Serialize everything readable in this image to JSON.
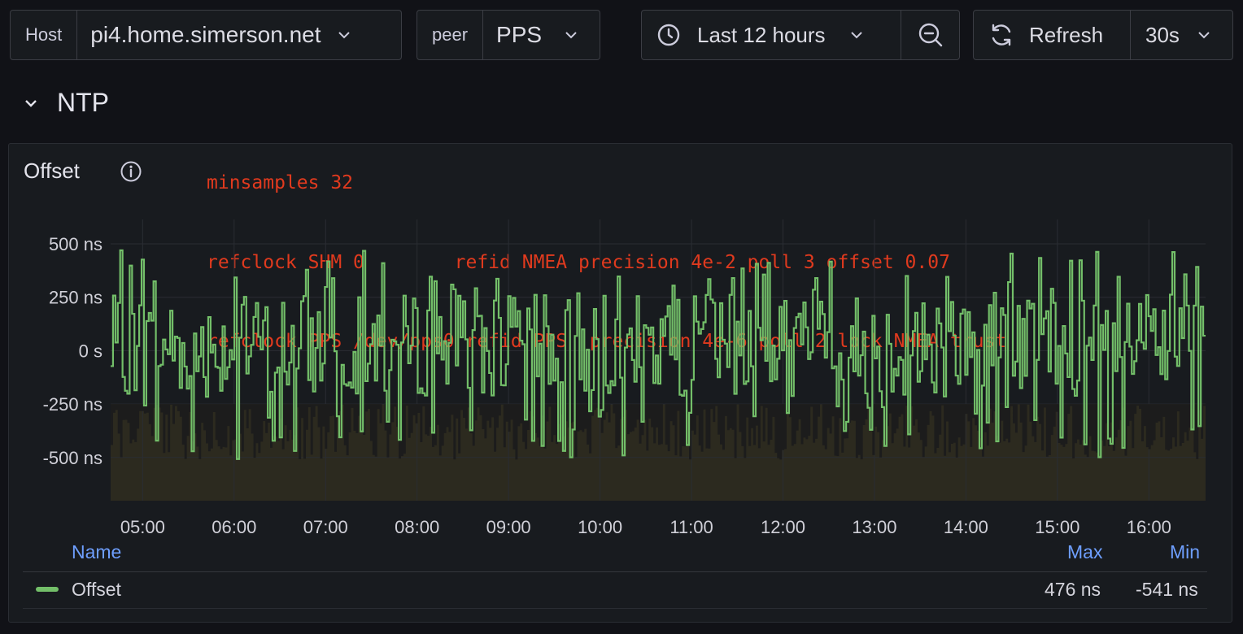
{
  "toolbar": {
    "host": {
      "label": "Host",
      "value": "pi4.home.simerson.net"
    },
    "peer": {
      "label": "peer",
      "value": "PPS"
    },
    "time_range": "Last 12 hours",
    "refresh_label": "Refresh",
    "refresh_interval": "30s"
  },
  "row": {
    "title": "NTP"
  },
  "panel": {
    "title": "Offset",
    "annotation_lines": [
      "minsamples 32",
      "refclock SHM 0        refid NMEA precision 4e-2 poll 3 offset 0.07",
      "refclock PPS /dev/pps0 refid PPS  precision 4e-6 poll 2 lock NMEA trust"
    ],
    "legend": {
      "headers": {
        "name": "Name",
        "max": "Max",
        "min": "Min"
      },
      "rows": [
        {
          "name": "Offset",
          "max": "476 ns",
          "min": "-541 ns",
          "color": "#73bf69"
        }
      ]
    }
  },
  "chart_data": {
    "type": "bar",
    "title": "Offset",
    "y_ticks": [
      "500 ns",
      "250 ns",
      "0 s",
      "-250 ns",
      "-500 ns"
    ],
    "y_tick_values": [
      500,
      250,
      0,
      -250,
      -500
    ],
    "ylim": [
      -700,
      600
    ],
    "x_ticks": [
      "05:00",
      "06:00",
      "07:00",
      "08:00",
      "09:00",
      "10:00",
      "11:00",
      "12:00",
      "13:00",
      "14:00",
      "15:00",
      "16:00"
    ],
    "x_range_hours": [
      4.65,
      16.62
    ],
    "series": [
      {
        "name": "Offset",
        "color": "#73bf69",
        "max": 476,
        "min": -541
      }
    ]
  }
}
